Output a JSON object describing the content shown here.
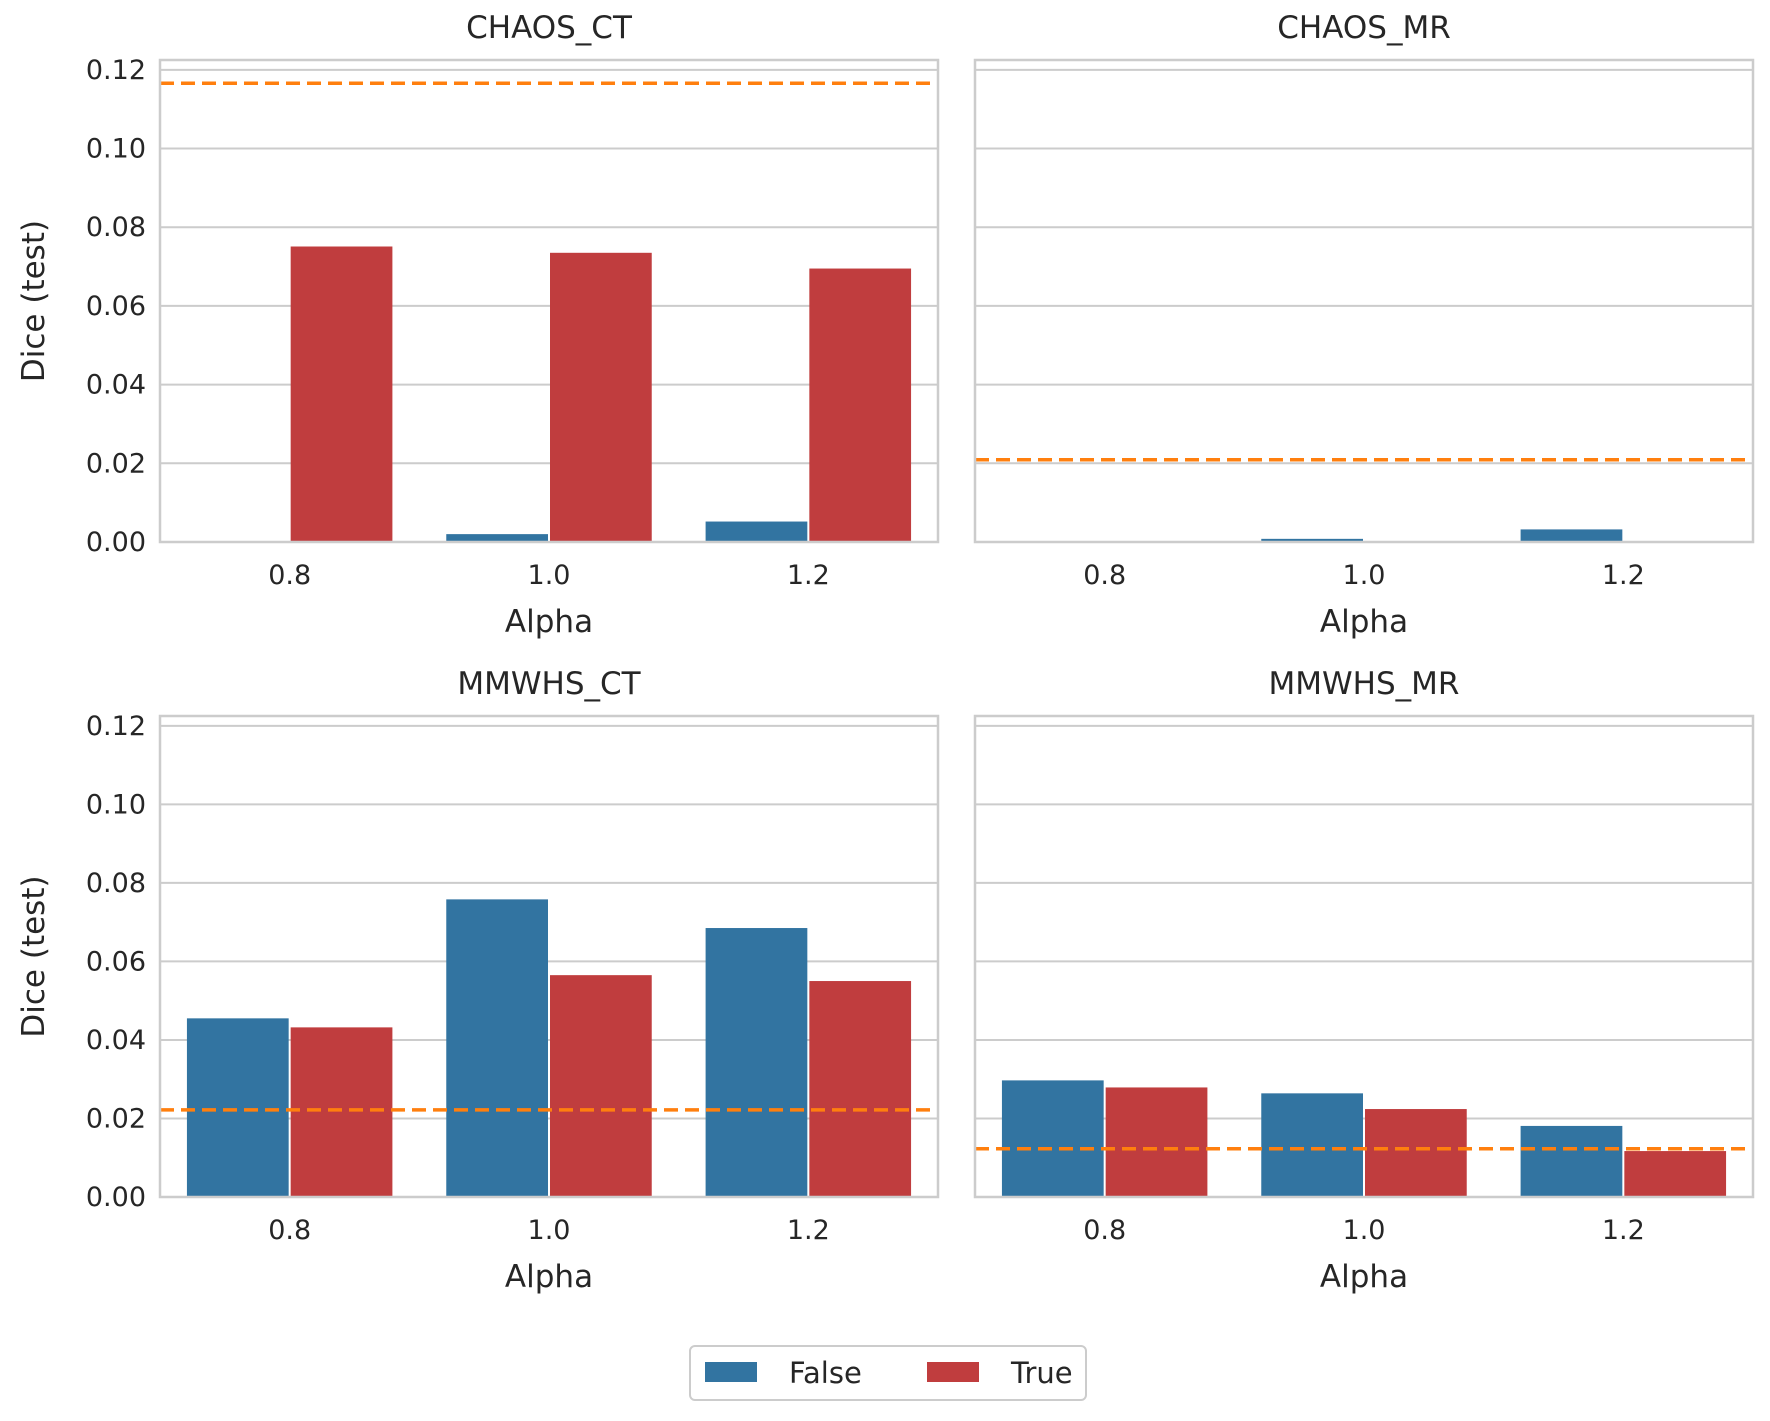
{
  "colors": {
    "false": "#3274a1",
    "true": "#c03d3e",
    "baseline": "#ff7f0e",
    "grid": "#cccccc",
    "spine": "#cccccc",
    "text": "#262626"
  },
  "legend": {
    "placement": "bottom-center",
    "entries": [
      {
        "label": "False",
        "color": "#3274a1"
      },
      {
        "label": "True",
        "color": "#c03d3e"
      }
    ]
  },
  "chart_data": [
    {
      "type": "bar",
      "title": "CHAOS_CT",
      "xlabel": "Alpha",
      "ylabel": "Dice (test)",
      "categories": [
        "0.8",
        "1.0",
        "1.2"
      ],
      "ylim": [
        0,
        0.1225
      ],
      "yticks": [
        "0.00",
        "0.02",
        "0.04",
        "0.06",
        "0.08",
        "0.10",
        "0.12"
      ],
      "grid": true,
      "series": [
        {
          "name": "False",
          "values": [
            0.0,
            0.002,
            0.0052
          ]
        },
        {
          "name": "True",
          "values": [
            0.0751,
            0.0735,
            0.0695
          ]
        }
      ],
      "baseline": 0.1166
    },
    {
      "type": "bar",
      "title": "CHAOS_MR",
      "xlabel": "Alpha",
      "ylabel": "",
      "categories": [
        "0.8",
        "1.0",
        "1.2"
      ],
      "ylim": [
        0,
        0.1225
      ],
      "yticks": [],
      "grid": true,
      "series": [
        {
          "name": "False",
          "values": [
            0.0,
            0.0008,
            0.0032
          ]
        },
        {
          "name": "True",
          "values": [
            0.0,
            0.0,
            0.0
          ]
        }
      ],
      "baseline": 0.0209
    },
    {
      "type": "bar",
      "title": "MMWHS_CT",
      "xlabel": "Alpha",
      "ylabel": "Dice (test)",
      "categories": [
        "0.8",
        "1.0",
        "1.2"
      ],
      "ylim": [
        0,
        0.1225
      ],
      "yticks": [
        "0.00",
        "0.02",
        "0.04",
        "0.06",
        "0.08",
        "0.10",
        "0.12"
      ],
      "grid": true,
      "series": [
        {
          "name": "False",
          "values": [
            0.0455,
            0.0758,
            0.0685
          ]
        },
        {
          "name": "True",
          "values": [
            0.0432,
            0.0565,
            0.055
          ]
        }
      ],
      "baseline": 0.0222
    },
    {
      "type": "bar",
      "title": "MMWHS_MR",
      "xlabel": "Alpha",
      "ylabel": "",
      "categories": [
        "0.8",
        "1.0",
        "1.2"
      ],
      "ylim": [
        0,
        0.1225
      ],
      "yticks": [],
      "grid": true,
      "series": [
        {
          "name": "False",
          "values": [
            0.0297,
            0.0264,
            0.0181
          ]
        },
        {
          "name": "True",
          "values": [
            0.0279,
            0.0224,
            0.0117
          ]
        }
      ],
      "baseline": 0.0123
    }
  ]
}
